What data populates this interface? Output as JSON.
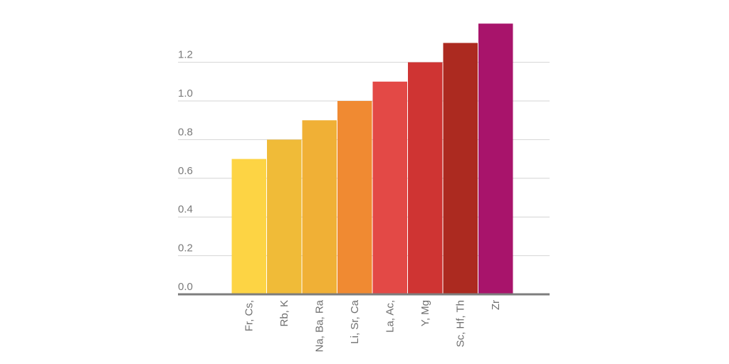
{
  "chart_data": {
    "type": "bar",
    "title": "",
    "xlabel": "",
    "ylabel": "",
    "categories": [
      "Fr, Cs,",
      "Rb, K",
      "Na, Ba, Ra",
      "Li, Sr, Ca",
      "La, Ac,",
      "Y, Mg",
      "Sc, Hf, Th",
      "Zr"
    ],
    "values": [
      0.7,
      0.8,
      0.9,
      1.0,
      1.1,
      1.2,
      1.3,
      1.4
    ],
    "colors": [
      "#fdd444",
      "#f0bb38",
      "#f0b036",
      "#f08a32",
      "#e34946",
      "#cf3433",
      "#ac2a20",
      "#a8146b"
    ],
    "ylim": [
      0,
      1.4
    ],
    "yticks": [
      {
        "value": 0.0,
        "label": "0.0"
      },
      {
        "value": 0.2,
        "label": "0.2"
      },
      {
        "value": 0.4,
        "label": "0.4"
      },
      {
        "value": 0.6,
        "label": "0.6"
      },
      {
        "value": 0.8,
        "label": "0.8"
      },
      {
        "value": 1.0,
        "label": "1.0"
      },
      {
        "value": 1.2,
        "label": "1.2"
      }
    ],
    "grid": true,
    "legend": "none"
  }
}
